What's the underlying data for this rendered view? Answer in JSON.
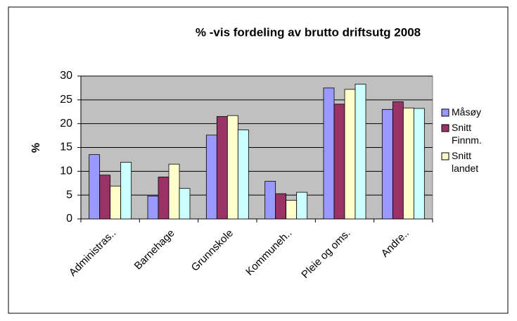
{
  "chart_data": {
    "type": "bar",
    "title": "% -vis fordeling av  brutto driftsutg  2008",
    "y_label": "%",
    "categories": [
      "Administras..",
      "Barnehage",
      "Grunnskole",
      "Kommuneh..",
      "Pleie og oms.",
      "Andre.."
    ],
    "series": [
      {
        "name": "Måsøy",
        "color": "#9999ff",
        "values": [
          13.5,
          4.8,
          17.6,
          7.9,
          27.5,
          23.0
        ]
      },
      {
        "name": "Snitt Finnm.",
        "color": "#993366",
        "values": [
          9.2,
          8.8,
          21.5,
          5.3,
          24.1,
          24.6
        ]
      },
      {
        "name": "Snitt landet",
        "color": "#ffffcc",
        "values": [
          6.9,
          11.5,
          21.7,
          3.9,
          27.2,
          23.3
        ]
      },
      {
        "color": "#ccffff",
        "values": [
          11.9,
          6.4,
          18.7,
          5.6,
          28.3,
          23.2
        ]
      }
    ],
    "ylim": [
      0,
      30
    ],
    "yticks": [
      0,
      5,
      10,
      15,
      20,
      25,
      30
    ],
    "grid": true,
    "legend": "right"
  }
}
